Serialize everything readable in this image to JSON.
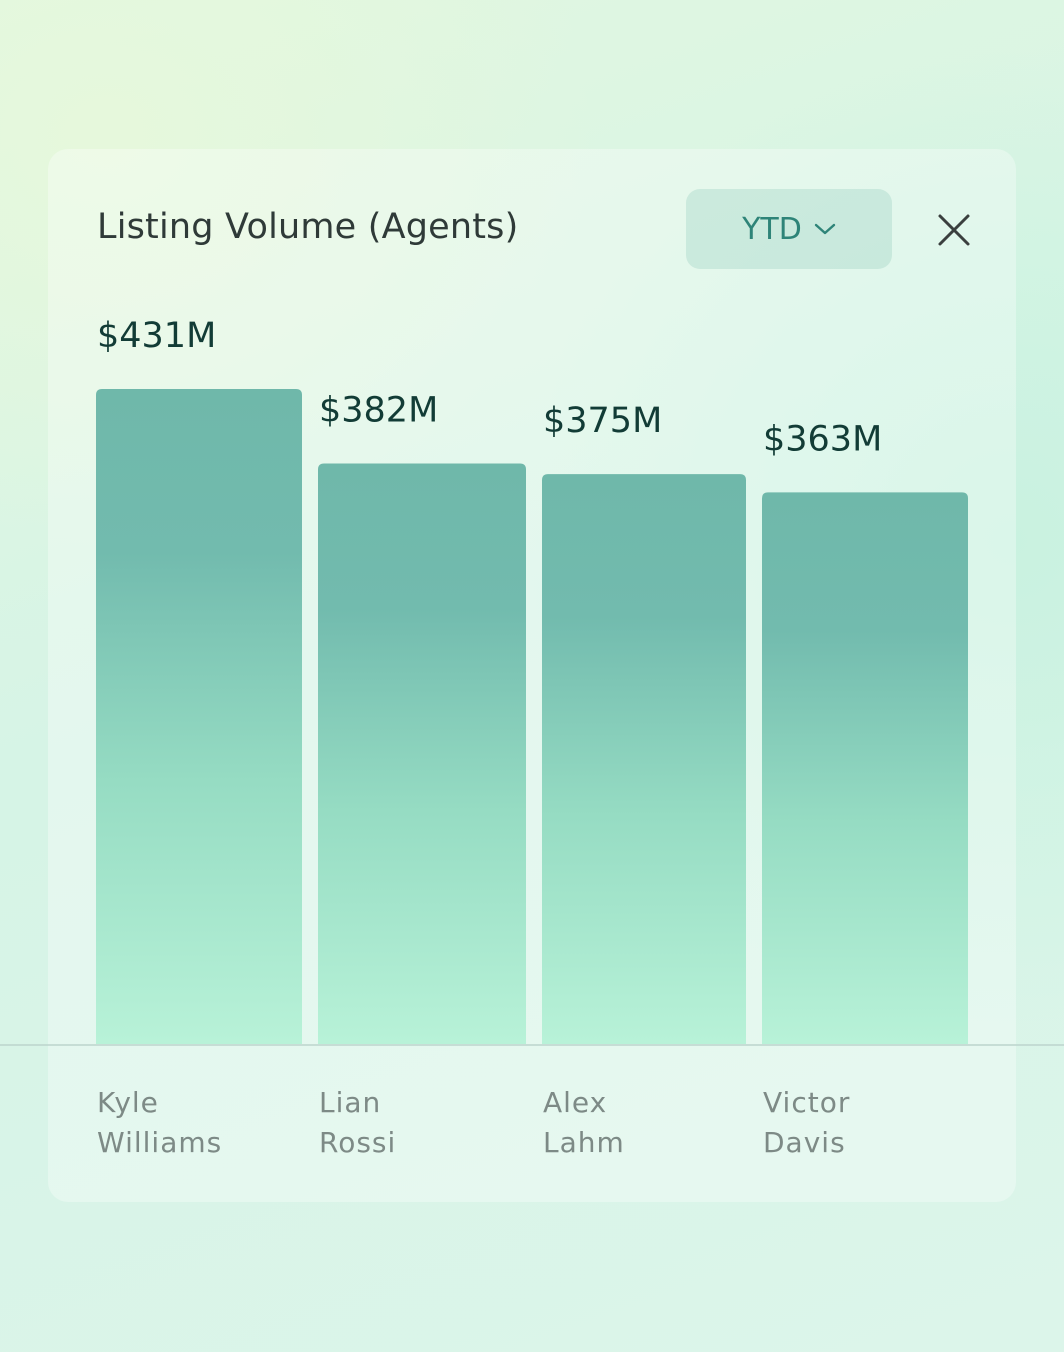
{
  "header": {
    "title": "Listing Volume (Agents)",
    "period_label": "YTD"
  },
  "icons": {
    "period_dropdown": "chevron-down-icon",
    "close": "close-icon"
  },
  "colors": {
    "bar_top": "#6fb8aa",
    "bar_bottom": "#b8f2d8",
    "value_text": "#123c36",
    "accent": "#2e8478"
  },
  "chart_data": {
    "type": "bar",
    "title": "Listing Volume (Agents)",
    "categories": [
      "Kyle\nWilliams",
      "Lian\nRossi",
      "Alex\nLahm",
      "Victor\nDavis"
    ],
    "values": [
      431,
      382,
      375,
      363
    ],
    "value_labels": [
      "$431M",
      "$382M",
      "$375M",
      "$363M"
    ],
    "unit": "$M",
    "xlabel": "",
    "ylabel": "",
    "grid": false
  }
}
